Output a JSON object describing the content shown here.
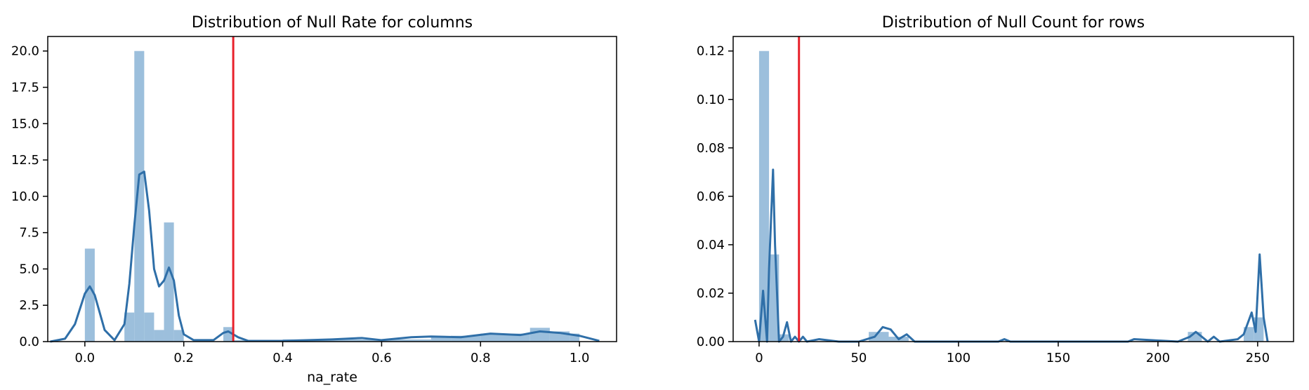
{
  "chart_data": [
    {
      "type": "histogram+kde",
      "title": "Distribution of Null Rate for columns",
      "xlabel": "na_rate",
      "ylabel": "",
      "xlim": [
        -0.075,
        1.075
      ],
      "ylim": [
        0,
        21
      ],
      "xticks": [
        0.0,
        0.2,
        0.4,
        0.6,
        0.8,
        1.0
      ],
      "xtick_labels": [
        "0.0",
        "0.2",
        "0.4",
        "0.6",
        "0.8",
        "1.0"
      ],
      "yticks": [
        0.0,
        2.5,
        5.0,
        7.5,
        10.0,
        12.5,
        15.0,
        17.5,
        20.0
      ],
      "ytick_labels": [
        "0.0",
        "2.5",
        "5.0",
        "7.5",
        "10.0",
        "12.5",
        "15.0",
        "17.5",
        "20.0"
      ],
      "grid": false,
      "hist_color": "#9cbfdc",
      "kde_color": "#2f6fa8",
      "threshold": {
        "x": 0.3,
        "color": "#e8212b"
      },
      "bins": [
        {
          "x0": 0.0,
          "x1": 0.02,
          "y": 6.4
        },
        {
          "x0": 0.02,
          "x1": 0.08,
          "y": 0.0
        },
        {
          "x0": 0.08,
          "x1": 0.1,
          "y": 2.0
        },
        {
          "x0": 0.1,
          "x1": 0.12,
          "y": 20.0
        },
        {
          "x0": 0.12,
          "x1": 0.14,
          "y": 2.0
        },
        {
          "x0": 0.14,
          "x1": 0.16,
          "y": 0.8
        },
        {
          "x0": 0.16,
          "x1": 0.18,
          "y": 8.2
        },
        {
          "x0": 0.18,
          "x1": 0.2,
          "y": 0.8
        },
        {
          "x0": 0.28,
          "x1": 0.3,
          "y": 1.0
        },
        {
          "x0": 0.3,
          "x1": 0.4,
          "y": 0.1
        },
        {
          "x0": 0.4,
          "x1": 0.7,
          "y": 0.15
        },
        {
          "x0": 0.7,
          "x1": 0.74,
          "y": 0.35
        },
        {
          "x0": 0.74,
          "x1": 0.8,
          "y": 0.4
        },
        {
          "x0": 0.8,
          "x1": 0.9,
          "y": 0.55
        },
        {
          "x0": 0.9,
          "x1": 0.94,
          "y": 0.95
        },
        {
          "x0": 0.94,
          "x1": 0.98,
          "y": 0.7
        },
        {
          "x0": 0.98,
          "x1": 1.0,
          "y": 0.55
        }
      ],
      "kde": [
        [
          -0.07,
          0.0
        ],
        [
          -0.04,
          0.2
        ],
        [
          -0.02,
          1.2
        ],
        [
          0.0,
          3.3
        ],
        [
          0.01,
          3.8
        ],
        [
          0.02,
          3.2
        ],
        [
          0.04,
          0.8
        ],
        [
          0.06,
          0.1
        ],
        [
          0.08,
          1.2
        ],
        [
          0.09,
          4.0
        ],
        [
          0.1,
          8.0
        ],
        [
          0.11,
          11.5
        ],
        [
          0.12,
          11.7
        ],
        [
          0.13,
          9.0
        ],
        [
          0.14,
          5.0
        ],
        [
          0.15,
          3.8
        ],
        [
          0.16,
          4.2
        ],
        [
          0.17,
          5.1
        ],
        [
          0.18,
          4.2
        ],
        [
          0.19,
          1.8
        ],
        [
          0.2,
          0.5
        ],
        [
          0.22,
          0.1
        ],
        [
          0.26,
          0.1
        ],
        [
          0.28,
          0.6
        ],
        [
          0.29,
          0.7
        ],
        [
          0.31,
          0.3
        ],
        [
          0.33,
          0.05
        ],
        [
          0.4,
          0.05
        ],
        [
          0.5,
          0.15
        ],
        [
          0.56,
          0.25
        ],
        [
          0.6,
          0.1
        ],
        [
          0.66,
          0.3
        ],
        [
          0.7,
          0.35
        ],
        [
          0.76,
          0.3
        ],
        [
          0.82,
          0.55
        ],
        [
          0.88,
          0.45
        ],
        [
          0.92,
          0.7
        ],
        [
          0.96,
          0.6
        ],
        [
          1.0,
          0.4
        ],
        [
          1.04,
          0.05
        ]
      ]
    },
    {
      "type": "histogram+kde",
      "title": "Distribution of Null Count for rows",
      "xlabel": "",
      "ylabel": "",
      "xlim": [
        -13,
        268
      ],
      "ylim": [
        0,
        0.126
      ],
      "xticks": [
        0,
        50,
        100,
        150,
        200,
        250
      ],
      "xtick_labels": [
        "0",
        "50",
        "100",
        "150",
        "200",
        "250"
      ],
      "yticks": [
        0.0,
        0.02,
        0.04,
        0.06,
        0.08,
        0.1,
        0.12
      ],
      "ytick_labels": [
        "0.00",
        "0.02",
        "0.04",
        "0.06",
        "0.08",
        "0.10",
        "0.12"
      ],
      "grid": false,
      "hist_color": "#9cbfdc",
      "kde_color": "#2f6fa8",
      "threshold": {
        "x": 20,
        "color": "#e8212b"
      },
      "bins": [
        {
          "x0": 0,
          "x1": 5,
          "y": 0.12
        },
        {
          "x0": 5,
          "x1": 10,
          "y": 0.036
        },
        {
          "x0": 10,
          "x1": 15,
          "y": 0.003
        },
        {
          "x0": 55,
          "x1": 65,
          "y": 0.004
        },
        {
          "x0": 65,
          "x1": 75,
          "y": 0.002
        },
        {
          "x0": 215,
          "x1": 222,
          "y": 0.004
        },
        {
          "x0": 243,
          "x1": 248,
          "y": 0.006
        },
        {
          "x0": 248,
          "x1": 253,
          "y": 0.01
        }
      ],
      "kde": [
        [
          -2,
          0.009
        ],
        [
          0,
          0.0
        ],
        [
          2,
          0.021
        ],
        [
          4,
          0.0
        ],
        [
          5,
          0.03
        ],
        [
          7,
          0.071
        ],
        [
          8,
          0.04
        ],
        [
          10,
          0.0
        ],
        [
          12,
          0.002
        ],
        [
          14,
          0.008
        ],
        [
          16,
          0.0
        ],
        [
          18,
          0.002
        ],
        [
          20,
          0.0
        ],
        [
          22,
          0.002
        ],
        [
          24,
          0.0
        ],
        [
          30,
          0.001
        ],
        [
          40,
          0.0
        ],
        [
          50,
          0.0
        ],
        [
          58,
          0.002
        ],
        [
          62,
          0.006
        ],
        [
          66,
          0.005
        ],
        [
          70,
          0.001
        ],
        [
          74,
          0.003
        ],
        [
          78,
          0.0
        ],
        [
          120,
          0.0
        ],
        [
          123,
          0.001
        ],
        [
          126,
          0.0
        ],
        [
          185,
          0.0
        ],
        [
          188,
          0.001
        ],
        [
          210,
          0.0
        ],
        [
          216,
          0.002
        ],
        [
          219,
          0.004
        ],
        [
          222,
          0.002
        ],
        [
          225,
          0.0
        ],
        [
          228,
          0.002
        ],
        [
          231,
          0.0
        ],
        [
          240,
          0.001
        ],
        [
          243,
          0.003
        ],
        [
          247,
          0.012
        ],
        [
          249,
          0.004
        ],
        [
          251,
          0.036
        ],
        [
          253,
          0.01
        ],
        [
          255,
          0.0
        ]
      ]
    }
  ]
}
